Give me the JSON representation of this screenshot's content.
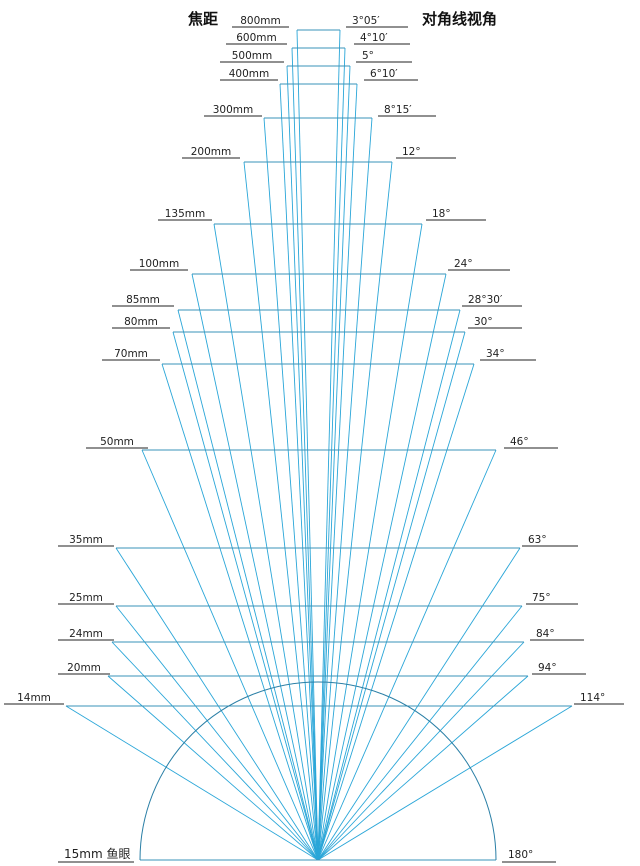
{
  "header": {
    "focal_title": "焦距",
    "angle_title": "对角线视角"
  },
  "lenses": [
    {
      "focal": "800mm",
      "angle": "3°05′"
    },
    {
      "focal": "600mm",
      "angle": "4°10′"
    },
    {
      "focal": "500mm",
      "angle": "5°"
    },
    {
      "focal": "400mm",
      "angle": "6°10′"
    },
    {
      "focal": "300mm",
      "angle": "8°15′"
    },
    {
      "focal": "200mm",
      "angle": "12°"
    },
    {
      "focal": "135mm",
      "angle": "18°"
    },
    {
      "focal": "100mm",
      "angle": "24°"
    },
    {
      "focal": "85mm",
      "angle": "28°30′"
    },
    {
      "focal": "80mm",
      "angle": "30°"
    },
    {
      "focal": "70mm",
      "angle": "34°"
    },
    {
      "focal": "50mm",
      "angle": "46°"
    },
    {
      "focal": "35mm",
      "angle": "63°"
    },
    {
      "focal": "25mm",
      "angle": "75°"
    },
    {
      "focal": "24mm",
      "angle": "84°"
    },
    {
      "focal": "20mm",
      "angle": "94°"
    },
    {
      "focal": "14mm",
      "angle": "114°"
    }
  ],
  "fisheye": {
    "focal": "15mm 鱼眼",
    "angle": "180°"
  },
  "colors": {
    "ray": "#2aa6d8",
    "chord": "#3a93b8",
    "text": "#222222"
  }
}
